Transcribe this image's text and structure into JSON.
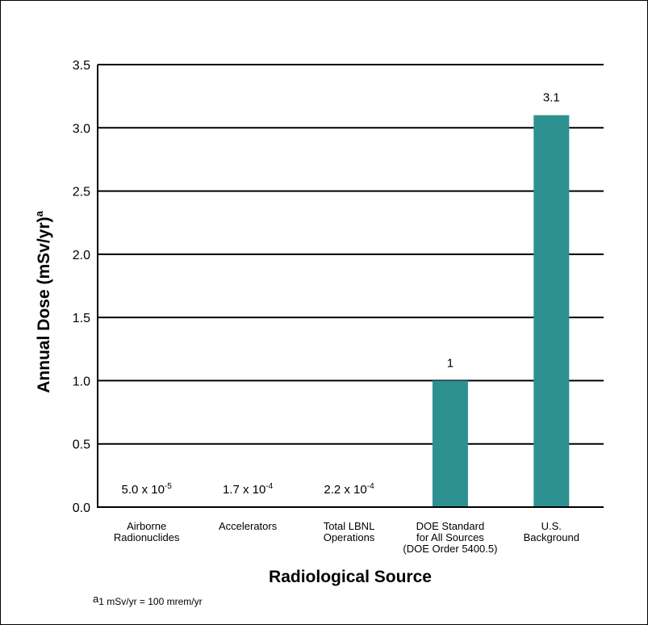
{
  "chart_data": {
    "type": "bar",
    "title": "",
    "xlabel": "Radiological Source",
    "ylabel": "Annual Dose (mSv/yr)",
    "ylabel_sup": "a",
    "ylim": [
      0,
      3.5
    ],
    "yticks": [
      "0.0",
      "0.5",
      "1.0",
      "1.5",
      "2.0",
      "2.5",
      "3.0",
      "3.5"
    ],
    "ytick_values": [
      0,
      0.5,
      1.0,
      1.5,
      2.0,
      2.5,
      3.0,
      3.5
    ],
    "grid": true,
    "bar_color": "#2e9191",
    "categories": [
      [
        "Airborne",
        "Radionuclides"
      ],
      [
        "Accelerators"
      ],
      [
        "Total LBNL",
        "Operations"
      ],
      [
        "DOE Standard",
        "for All Sources",
        "(DOE Order 5400.5)"
      ],
      [
        "U.S.",
        "Background"
      ]
    ],
    "values": [
      5e-05,
      0.00017,
      0.00022,
      1,
      3.1
    ],
    "data_labels": [
      {
        "base": "5.0 x 10",
        "exp": "-5"
      },
      {
        "base": "1.7 x 10",
        "exp": "-4"
      },
      {
        "base": "2.2 x 10",
        "exp": "-4"
      },
      {
        "base": "1",
        "exp": ""
      },
      {
        "base": "3.1",
        "exp": ""
      }
    ]
  },
  "footnote": {
    "marker": "a",
    "text": "1 mSv/yr = 100 mrem/yr"
  }
}
